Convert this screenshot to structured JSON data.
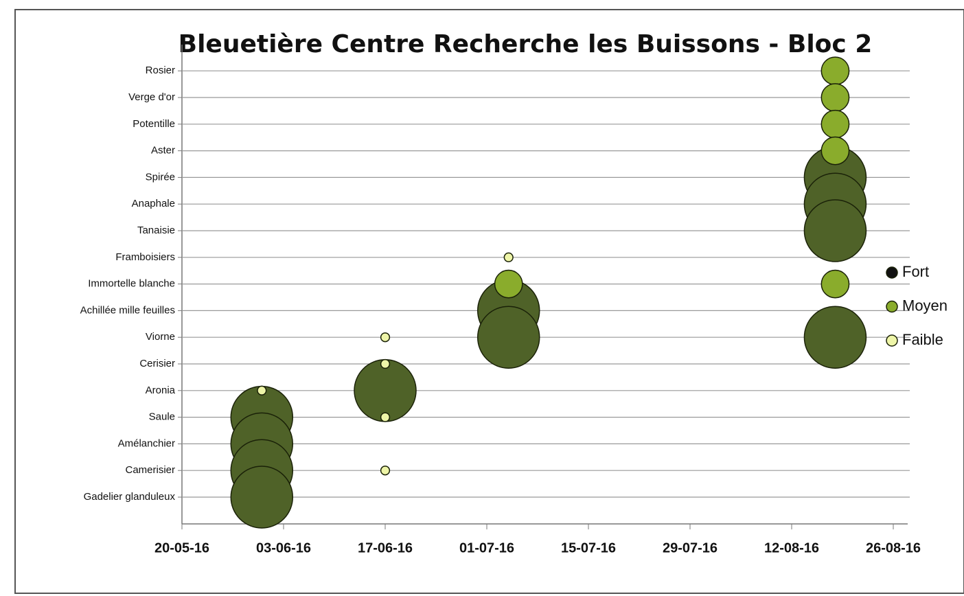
{
  "chart_data": {
    "type": "bubble",
    "title": "Bleuetière Centre Recherche les Buissons - Bloc 2",
    "categories": [
      "Gadelier glanduleux",
      "Camerisier",
      "Amélanchier",
      "Saule",
      "Aronia",
      "Cerisier",
      "Viorne",
      "Achillée mille feuilles",
      "Immortelle blanche",
      "Framboisiers",
      "Tanaisie",
      "Anaphale",
      "Spirée",
      "Aster",
      "Potentille",
      "Verge d'or",
      "Rosier"
    ],
    "xlim": [
      "20-05-16",
      "26-08-16"
    ],
    "xticks": [
      "20-05-16",
      "03-06-16",
      "17-06-16",
      "01-07-16",
      "15-07-16",
      "29-07-16",
      "12-08-16",
      "26-08-16"
    ],
    "grid": true,
    "legend": "right",
    "series": [
      {
        "name": "Fort",
        "color": "#4f6228",
        "x": [
          "31-05-16",
          "31-05-16",
          "31-05-16",
          "31-05-16",
          "17-06-16",
          "04-07-16",
          "04-07-16",
          "18-08-16",
          "18-08-16",
          "18-08-16",
          "18-08-16"
        ],
        "y": [
          "Saule",
          "Amélanchier",
          "Camerisier",
          "Gadelier glanduleux",
          "Aronia",
          "Achillée mille feuilles",
          "Viorne",
          "Spirée",
          "Anaphale",
          "Tanaisie",
          "Viorne"
        ],
        "sizes": [
          100,
          100,
          100,
          100,
          100,
          100,
          100,
          100,
          100,
          100,
          100
        ]
      },
      {
        "name": "Moyen",
        "color": "#8aac2c",
        "x": [
          "04-07-16",
          "18-08-16",
          "18-08-16",
          "18-08-16",
          "18-08-16",
          "18-08-16"
        ],
        "y": [
          "Immortelle blanche",
          "Rosier",
          "Verge d'or",
          "Potentille",
          "Aster",
          "Immortelle blanche"
        ],
        "sizes": [
          20,
          20,
          20,
          20,
          20,
          20
        ]
      },
      {
        "name": "Faible",
        "color": "#eef5a8",
        "x": [
          "31-05-16",
          "17-06-16",
          "17-06-16",
          "17-06-16",
          "17-06-16",
          "04-07-16"
        ],
        "y": [
          "Aronia",
          "Viorne",
          "Cerisier",
          "Saule",
          "Camerisier",
          "Framboisiers"
        ],
        "sizes": [
          2,
          2,
          2,
          2,
          2,
          2
        ]
      }
    ]
  }
}
